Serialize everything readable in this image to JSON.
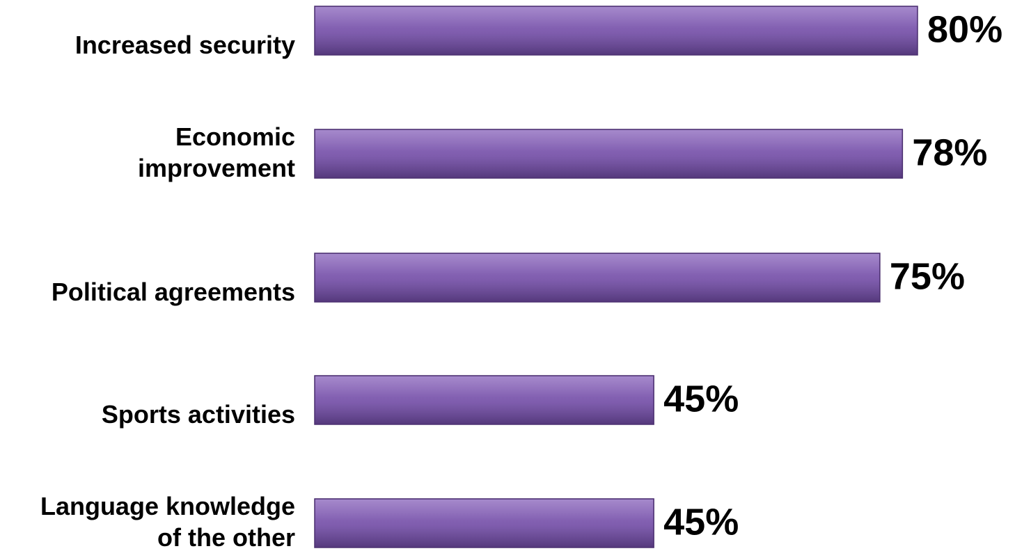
{
  "chart_data": {
    "type": "bar",
    "orientation": "horizontal",
    "categories": [
      [
        "Increased security"
      ],
      [
        "Economic",
        "improvement"
      ],
      [
        "Political agreements"
      ],
      [
        "Sports activities"
      ],
      [
        "Language knowledge",
        "of the other"
      ]
    ],
    "values": [
      80,
      78,
      75,
      45,
      45
    ],
    "value_labels": [
      "80%",
      "78%",
      "75%",
      "45%",
      "45%"
    ],
    "xlim": [
      0,
      80
    ],
    "grid": false,
    "legend": "none",
    "colors": {
      "bar_top": "#8c68bd",
      "bar_mid": "#7a56ab",
      "bar_bottom": "#5e3f8a",
      "bar_edge": "#4a2f6e"
    }
  }
}
